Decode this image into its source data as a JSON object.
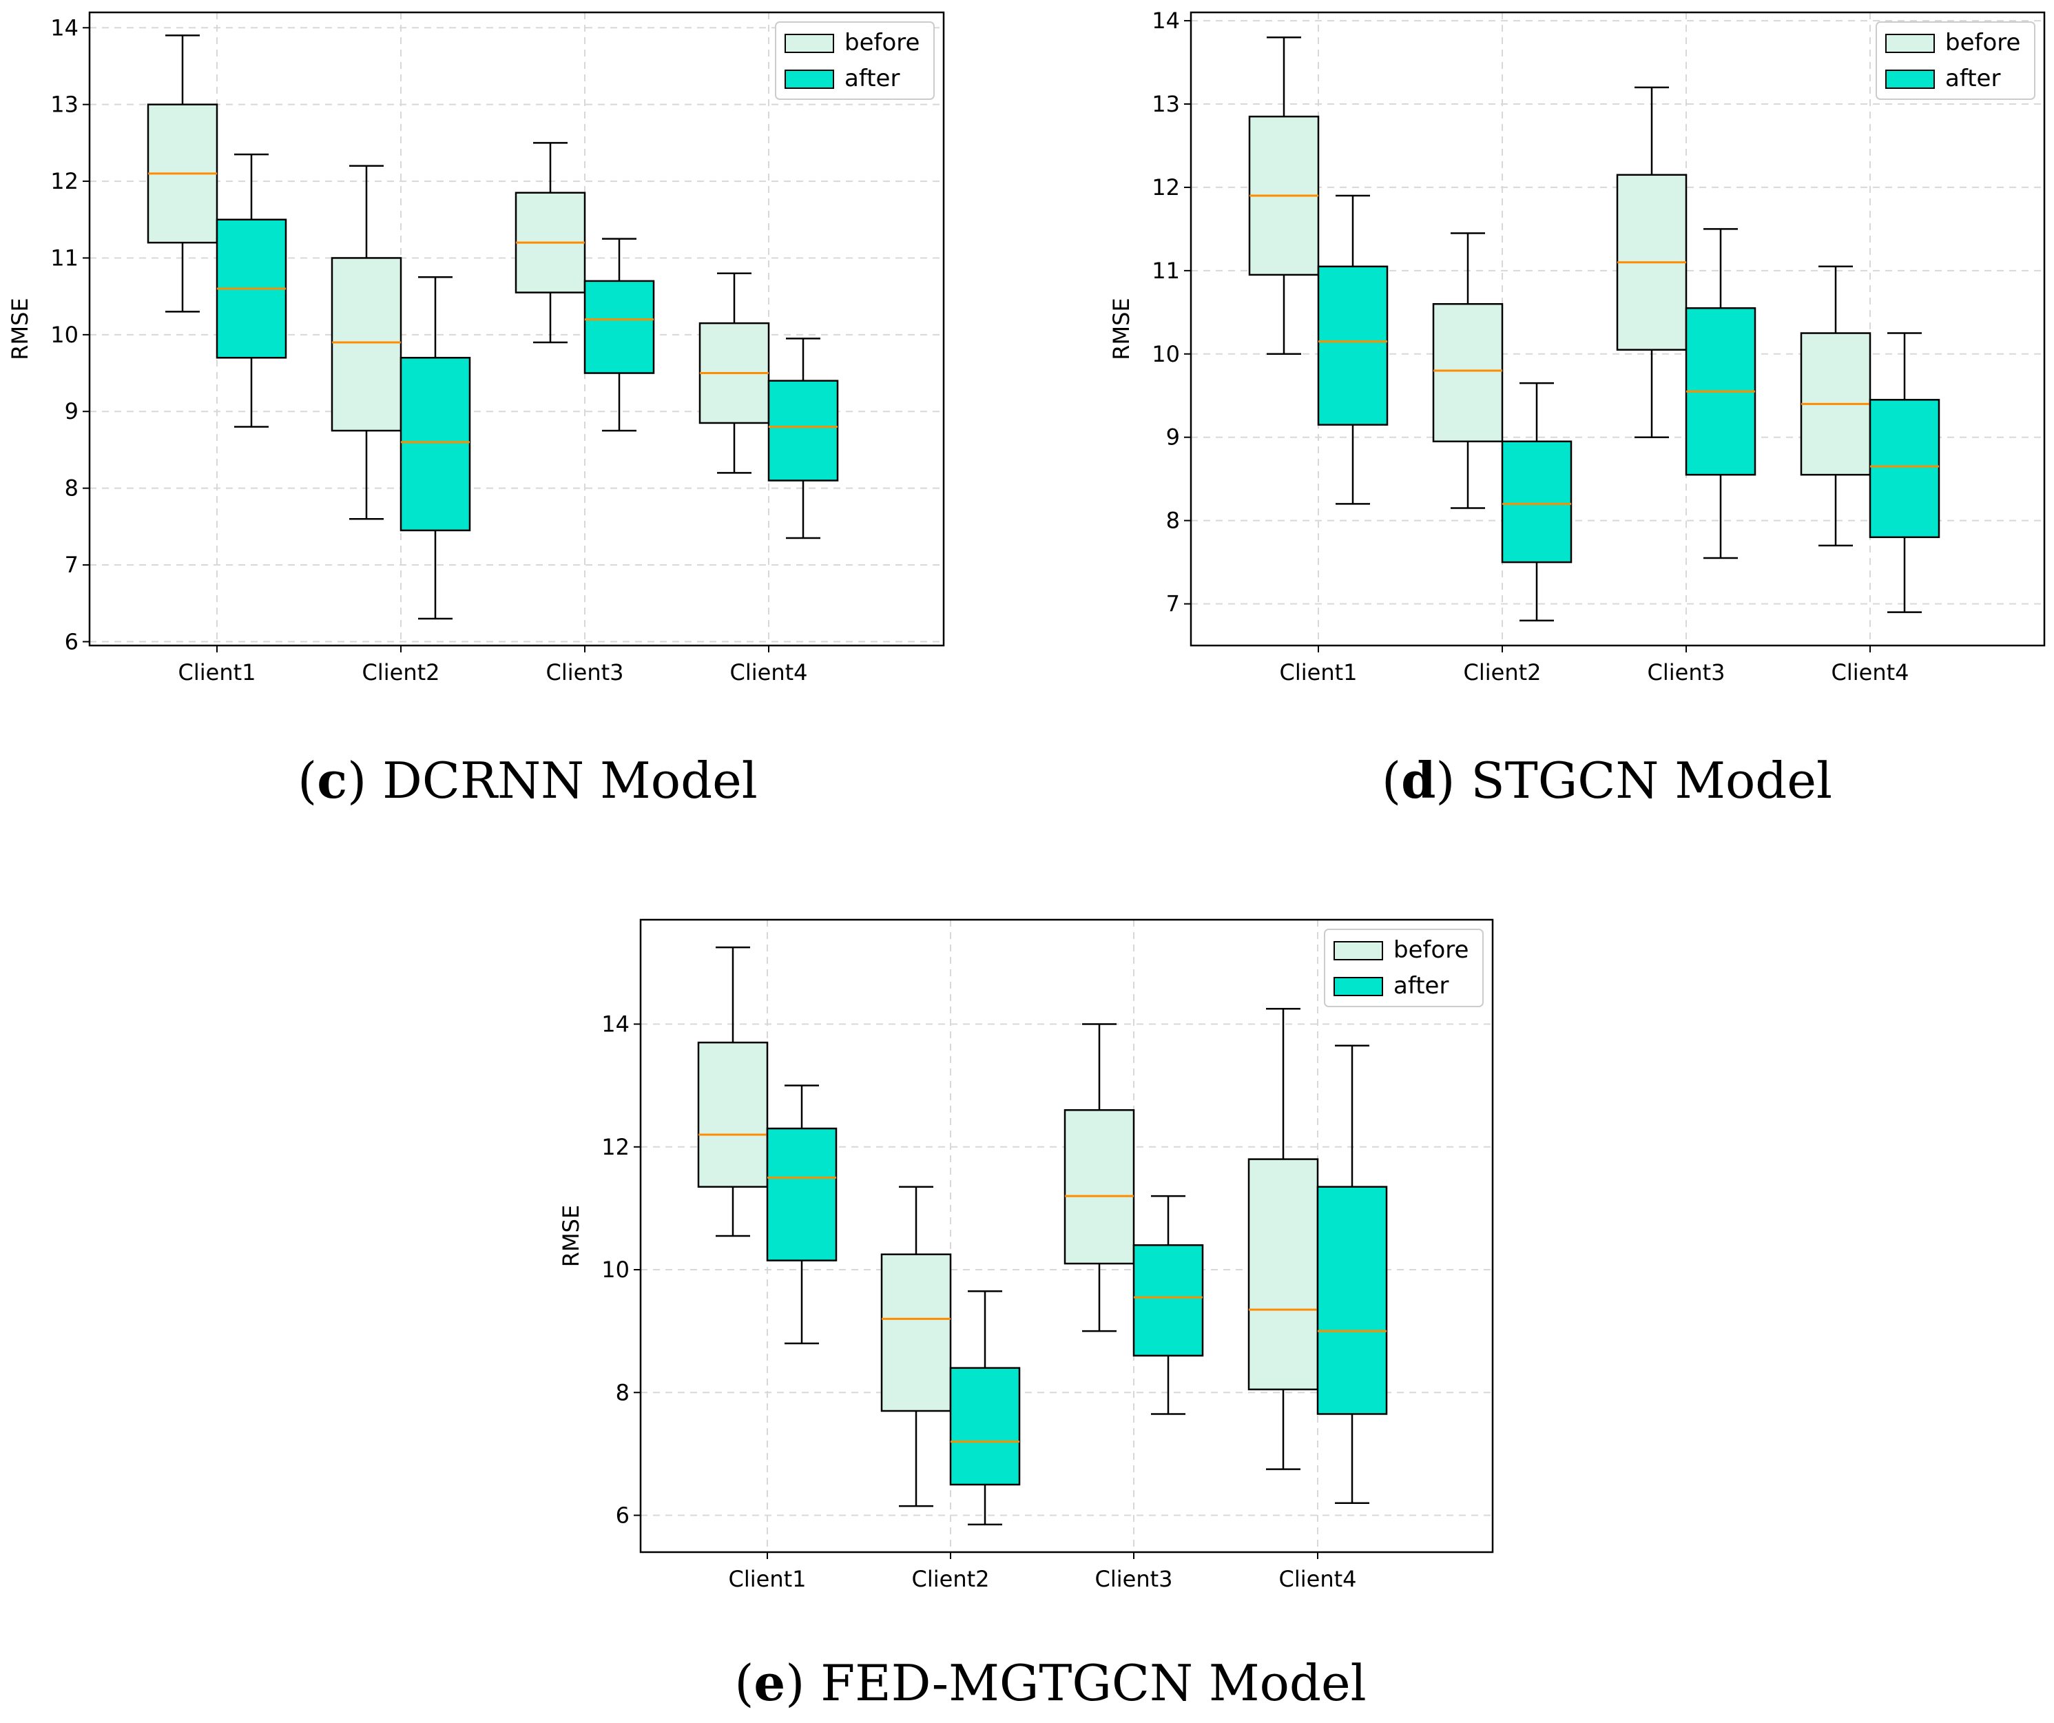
{
  "figure": {
    "captions": [
      {
        "letter": "c",
        "text": "DCRNN Model"
      },
      {
        "letter": "d",
        "text": "STGCN Model"
      },
      {
        "letter": "e",
        "text": "FED-MGTGCN Model"
      }
    ]
  },
  "colors": {
    "before_fill": "#d8f4e8",
    "after_fill": "#00e5cc",
    "median": "#ff8c00",
    "edge": "#000000",
    "grid": "#d8d8d8"
  },
  "chart_data": [
    {
      "id": "c",
      "type": "boxplot",
      "title": "DCRNN Model",
      "ylabel": "RMSE",
      "xlabel": "",
      "categories": [
        "Client1",
        "Client2",
        "Client3",
        "Client4"
      ],
      "ylim": [
        5.95,
        14.2
      ],
      "yticks": [
        6,
        7,
        8,
        9,
        10,
        11,
        12,
        13,
        14
      ],
      "grid": true,
      "legend": {
        "position": "top-right",
        "entries": [
          "before",
          "after"
        ]
      },
      "series": [
        {
          "name": "before",
          "boxes": [
            {
              "whislo": 10.3,
              "q1": 11.2,
              "med": 12.1,
              "q3": 13.0,
              "whishi": 13.9
            },
            {
              "whislo": 7.6,
              "q1": 8.75,
              "med": 9.9,
              "q3": 11.0,
              "whishi": 12.2
            },
            {
              "whislo": 9.9,
              "q1": 10.55,
              "med": 11.2,
              "q3": 11.85,
              "whishi": 12.5
            },
            {
              "whislo": 8.2,
              "q1": 8.85,
              "med": 9.5,
              "q3": 10.15,
              "whishi": 10.8
            }
          ]
        },
        {
          "name": "after",
          "boxes": [
            {
              "whislo": 8.8,
              "q1": 9.7,
              "med": 10.6,
              "q3": 11.5,
              "whishi": 12.35
            },
            {
              "whislo": 6.3,
              "q1": 7.45,
              "med": 8.6,
              "q3": 9.7,
              "whishi": 10.75
            },
            {
              "whislo": 8.75,
              "q1": 9.5,
              "med": 10.2,
              "q3": 10.7,
              "whishi": 11.25
            },
            {
              "whislo": 7.35,
              "q1": 8.1,
              "med": 8.8,
              "q3": 9.4,
              "whishi": 9.95
            }
          ]
        }
      ]
    },
    {
      "id": "d",
      "type": "boxplot",
      "title": "STGCN Model",
      "ylabel": "RMSE",
      "xlabel": "",
      "categories": [
        "Client1",
        "Client2",
        "Client3",
        "Client4"
      ],
      "ylim": [
        6.5,
        14.1
      ],
      "yticks": [
        7,
        8,
        9,
        10,
        11,
        12,
        13,
        14
      ],
      "grid": true,
      "legend": {
        "position": "top-right",
        "entries": [
          "before",
          "after"
        ]
      },
      "series": [
        {
          "name": "before",
          "boxes": [
            {
              "whislo": 10.0,
              "q1": 10.95,
              "med": 11.9,
              "q3": 12.85,
              "whishi": 13.8
            },
            {
              "whislo": 8.15,
              "q1": 8.95,
              "med": 9.8,
              "q3": 10.6,
              "whishi": 11.45
            },
            {
              "whislo": 9.0,
              "q1": 10.05,
              "med": 11.1,
              "q3": 12.15,
              "whishi": 13.2
            },
            {
              "whislo": 7.7,
              "q1": 8.55,
              "med": 9.4,
              "q3": 10.25,
              "whishi": 11.05
            }
          ]
        },
        {
          "name": "after",
          "boxes": [
            {
              "whislo": 8.2,
              "q1": 9.15,
              "med": 10.15,
              "q3": 11.05,
              "whishi": 11.9
            },
            {
              "whislo": 6.8,
              "q1": 7.5,
              "med": 8.2,
              "q3": 8.95,
              "whishi": 9.65
            },
            {
              "whislo": 7.55,
              "q1": 8.55,
              "med": 9.55,
              "q3": 10.55,
              "whishi": 11.5
            },
            {
              "whislo": 6.9,
              "q1": 7.8,
              "med": 8.65,
              "q3": 9.45,
              "whishi": 10.25
            }
          ]
        }
      ]
    },
    {
      "id": "e",
      "type": "boxplot",
      "title": "FED-MGTGCN Model",
      "ylabel": "RMSE",
      "xlabel": "",
      "categories": [
        "Client1",
        "Client2",
        "Client3",
        "Client4"
      ],
      "ylim": [
        5.4,
        15.7
      ],
      "yticks": [
        6,
        8,
        10,
        12,
        14
      ],
      "grid": true,
      "legend": {
        "position": "top-right",
        "entries": [
          "before",
          "after"
        ]
      },
      "series": [
        {
          "name": "before",
          "boxes": [
            {
              "whislo": 10.55,
              "q1": 11.35,
              "med": 12.2,
              "q3": 13.7,
              "whishi": 15.25
            },
            {
              "whislo": 6.15,
              "q1": 7.7,
              "med": 9.2,
              "q3": 10.25,
              "whishi": 11.35
            },
            {
              "whislo": 9.0,
              "q1": 10.1,
              "med": 11.2,
              "q3": 12.6,
              "whishi": 14.0
            },
            {
              "whislo": 6.75,
              "q1": 8.05,
              "med": 9.35,
              "q3": 11.8,
              "whishi": 14.25
            }
          ]
        },
        {
          "name": "after",
          "boxes": [
            {
              "whislo": 8.8,
              "q1": 10.15,
              "med": 11.5,
              "q3": 12.3,
              "whishi": 13.0
            },
            {
              "whislo": 5.85,
              "q1": 6.5,
              "med": 7.2,
              "q3": 8.4,
              "whishi": 9.65
            },
            {
              "whislo": 7.65,
              "q1": 8.6,
              "med": 9.55,
              "q3": 10.4,
              "whishi": 11.2
            },
            {
              "whislo": 6.2,
              "q1": 7.65,
              "med": 9.0,
              "q3": 11.35,
              "whishi": 13.65
            }
          ]
        }
      ]
    }
  ]
}
